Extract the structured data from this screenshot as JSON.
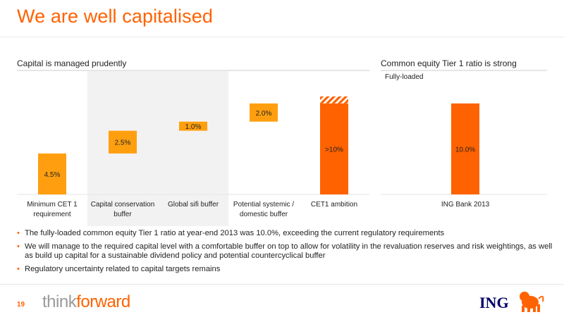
{
  "slide": {
    "title": "We are well capitalised",
    "page_number": "19"
  },
  "left_panel": {
    "heading": "Capital is managed prudently"
  },
  "right_panel": {
    "heading": "Common equity Tier 1 ratio is strong",
    "subheading": "Fully-loaded"
  },
  "colors": {
    "accent": "#ff6200",
    "bar_light": "#ff9f0f",
    "bar_dark": "#ff6200",
    "shade": "#f2f2f2",
    "ing_navy": "#000066"
  },
  "chart_data": [
    {
      "type": "bar",
      "style": "waterfall",
      "categories": [
        [
          "Minimum CET 1",
          "requirement"
        ],
        [
          "Capital conservation",
          "buffer"
        ],
        [
          "Global sifi buffer"
        ],
        [
          "Potential systemic /",
          "domestic buffer"
        ],
        [
          "CET1 ambition"
        ]
      ],
      "values": [
        4.5,
        2.5,
        1.0,
        2.0,
        10.0
      ],
      "data_labels": [
        "4.5%",
        "2.5%",
        "1.0%",
        "2.0%",
        ">10%"
      ],
      "bar_style": [
        "light",
        "light",
        "light",
        "light",
        "dark-hatched-top"
      ],
      "shaded_categories": [
        1,
        2
      ],
      "ylim": [
        0,
        12
      ]
    },
    {
      "type": "bar",
      "subtitle": "Fully-loaded",
      "categories": [
        [
          "ING Bank 2013"
        ]
      ],
      "values": [
        10.0
      ],
      "data_labels": [
        "10.0%"
      ],
      "ylim": [
        0,
        12
      ]
    }
  ],
  "bullets": [
    "The fully-loaded common equity Tier 1 ratio at year-end 2013 was 10.0%, exceeding the current regulatory requirements",
    "We will manage to the required capital level with a comfortable buffer on top to allow for volatility in the revaluation reserves and risk weightings, as well as build up capital for a sustainable dividend policy and potential countercyclical buffer",
    "Regulatory uncertainty related to capital targets remains"
  ],
  "footer": {
    "brand_think": "think",
    "brand_forward": "forward",
    "logo_text": "ING",
    "logo_icon": "lion-icon"
  }
}
